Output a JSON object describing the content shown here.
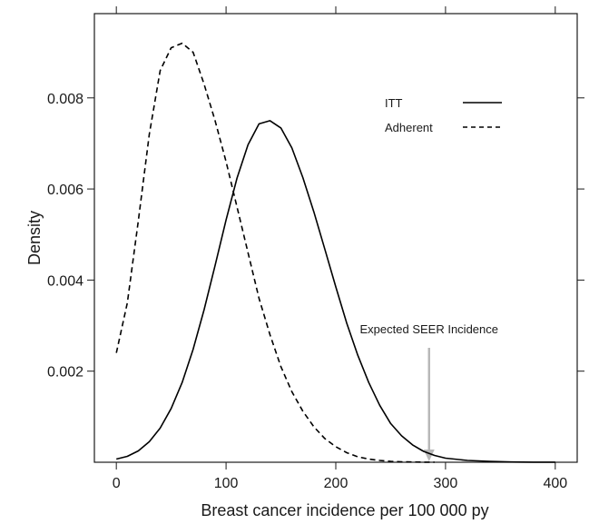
{
  "chart_data": {
    "type": "line",
    "xlabel": "Breast cancer incidence per 100 000 py",
    "ylabel": "Density",
    "xlim": [
      -20,
      420
    ],
    "ylim": [
      0,
      0.00985
    ],
    "x_ticks": [
      0,
      100,
      200,
      300,
      400
    ],
    "y_ticks": [
      0.002,
      0.004,
      0.006,
      0.008
    ],
    "y_tick_labels": [
      "0.002",
      "0.004",
      "0.006",
      "0.008"
    ],
    "grid": false,
    "legend_position": "top-right",
    "series": [
      {
        "name": "ITT",
        "style": "solid",
        "color": "#000000",
        "x": [
          0,
          10,
          20,
          30,
          40,
          50,
          60,
          70,
          80,
          90,
          100,
          110,
          120,
          130,
          140,
          150,
          160,
          170,
          180,
          190,
          200,
          210,
          220,
          230,
          240,
          250,
          260,
          270,
          280,
          290,
          300,
          320,
          340,
          360,
          380,
          400
        ],
        "y": [
          7e-05,
          0.00013,
          0.00025,
          0.00045,
          0.00075,
          0.00118,
          0.00175,
          0.00248,
          0.00335,
          0.00432,
          0.00532,
          0.00624,
          0.00697,
          0.00743,
          0.0075,
          0.00734,
          0.0069,
          0.00625,
          0.0055,
          0.00468,
          0.00385,
          0.00305,
          0.00235,
          0.00175,
          0.00125,
          0.00085,
          0.00058,
          0.00038,
          0.00024,
          0.00015,
          9e-05,
          4e-05,
          2e-05,
          5e-06,
          2e-06,
          1e-06
        ]
      },
      {
        "name": "Adherent",
        "style": "dashed",
        "color": "#000000",
        "x": [
          0,
          10,
          20,
          30,
          40,
          50,
          60,
          70,
          80,
          90,
          100,
          110,
          120,
          130,
          140,
          150,
          160,
          170,
          180,
          190,
          200,
          210,
          220,
          230,
          240,
          250,
          260,
          270,
          280,
          290
        ],
        "y": [
          0.0024,
          0.0035,
          0.0053,
          0.0072,
          0.0086,
          0.0091,
          0.0092,
          0.009,
          0.0083,
          0.0075,
          0.0066,
          0.0056,
          0.0046,
          0.0036,
          0.0028,
          0.0021,
          0.00155,
          0.00112,
          0.00078,
          0.00052,
          0.00034,
          0.00021,
          0.00012,
          7e-05,
          4e-05,
          2e-05,
          1e-05,
          5e-06,
          2e-06,
          1e-06
        ]
      }
    ],
    "annotation": {
      "text": "Expected SEER Incidence",
      "x": 285,
      "arrow_color": "#b8b8b8"
    }
  }
}
